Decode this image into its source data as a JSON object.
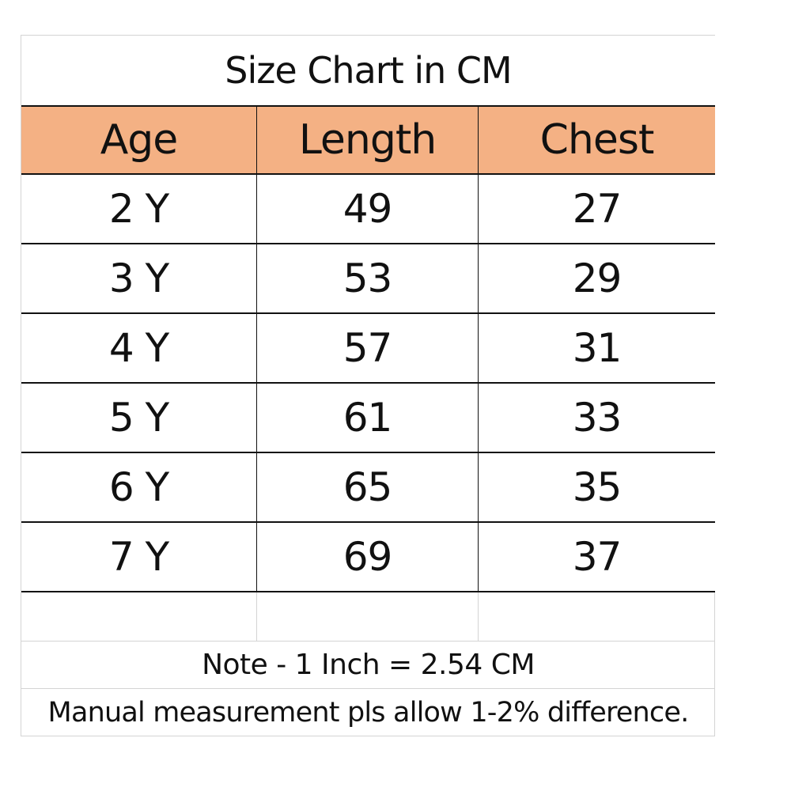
{
  "title": "Size Chart in CM",
  "columns": [
    "Age",
    "Length",
    "Chest"
  ],
  "rows": [
    {
      "age": "2 Y",
      "length": "49",
      "chest": "27"
    },
    {
      "age": "3 Y",
      "length": "53",
      "chest": "29"
    },
    {
      "age": "4 Y",
      "length": "57",
      "chest": "31"
    },
    {
      "age": "5 Y",
      "length": "61",
      "chest": "33"
    },
    {
      "age": "6 Y",
      "length": "65",
      "chest": "35"
    },
    {
      "age": "7 Y",
      "length": "69",
      "chest": "37"
    }
  ],
  "note": "Note - 1 Inch = 2.54 CM",
  "disclaimer": "Manual measurement pls allow 1-2% difference.",
  "colors": {
    "header_background": "#f4b184",
    "border": "#111111",
    "gridline": "#d4d4d4"
  }
}
